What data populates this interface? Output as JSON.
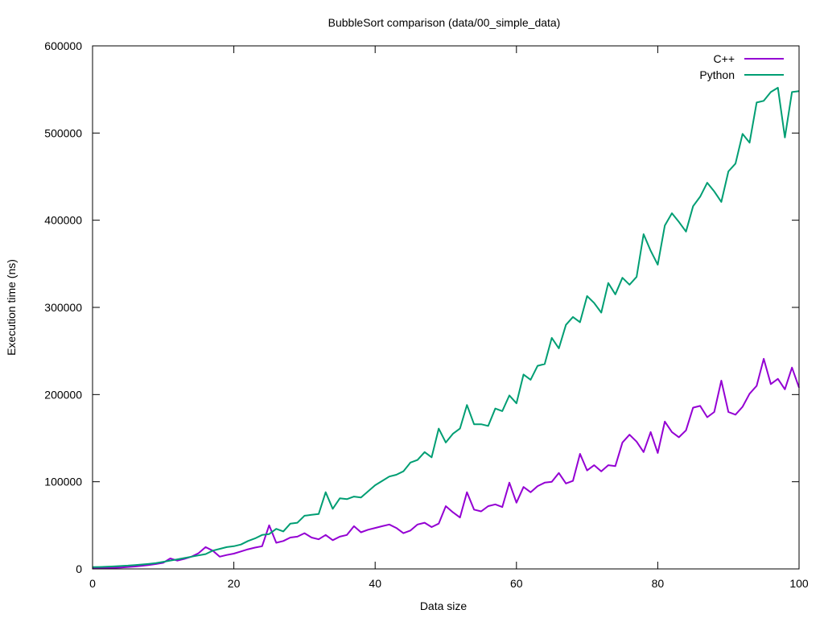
{
  "chart_data": {
    "type": "line",
    "title": "BubbleSort comparison (data/00_simple_data)",
    "xlabel": "Data size",
    "ylabel": "Execution time (ns)",
    "xlim": [
      0,
      100
    ],
    "ylim": [
      0,
      600000
    ],
    "x_ticks": [
      0,
      20,
      40,
      60,
      80,
      100
    ],
    "y_ticks": [
      0,
      100000,
      200000,
      300000,
      400000,
      500000,
      600000
    ],
    "grid": false,
    "legend_position": "top-right",
    "series": [
      {
        "name": "C++",
        "color": "#9400d3",
        "x": [
          0,
          1,
          2,
          3,
          4,
          5,
          6,
          7,
          8,
          9,
          10,
          11,
          12,
          13,
          14,
          15,
          16,
          17,
          18,
          19,
          20,
          21,
          22,
          23,
          24,
          25,
          26,
          27,
          28,
          29,
          30,
          31,
          32,
          33,
          34,
          35,
          36,
          37,
          38,
          39,
          40,
          41,
          42,
          43,
          44,
          45,
          46,
          47,
          48,
          49,
          50,
          51,
          52,
          53,
          54,
          55,
          56,
          57,
          58,
          59,
          60,
          61,
          62,
          63,
          64,
          65,
          66,
          67,
          68,
          69,
          70,
          71,
          72,
          73,
          74,
          75,
          76,
          77,
          78,
          79,
          80,
          81,
          82,
          83,
          84,
          85,
          86,
          87,
          88,
          89,
          90,
          91,
          92,
          93,
          94,
          95,
          96,
          97,
          98,
          99,
          100
        ],
        "values": [
          500,
          700,
          1000,
          1300,
          1700,
          2200,
          2800,
          3600,
          4500,
          5600,
          7000,
          12000,
          9500,
          11500,
          14000,
          18000,
          25000,
          21000,
          14000,
          16000,
          17500,
          20000,
          22500,
          24500,
          26000,
          50000,
          30000,
          32000,
          36000,
          37000,
          41000,
          36000,
          34000,
          39000,
          33000,
          37000,
          39000,
          49000,
          42000,
          45000,
          47000,
          49000,
          51000,
          47000,
          41000,
          44000,
          51000,
          53000,
          48000,
          52000,
          72000,
          65000,
          59000,
          88000,
          68000,
          66000,
          72000,
          74000,
          71000,
          99000,
          76000,
          94000,
          88000,
          95000,
          99000,
          100000,
          110000,
          98000,
          101000,
          132000,
          113000,
          119000,
          112000,
          119000,
          118000,
          145000,
          154000,
          146000,
          134000,
          157000,
          133000,
          169000,
          157000,
          151000,
          159000,
          185000,
          187000,
          174000,
          180000,
          216000,
          180000,
          177000,
          186000,
          201000,
          210000,
          241000,
          212000,
          218000,
          206000,
          231000,
          208000
        ]
      },
      {
        "name": "Python",
        "color": "#009e73",
        "x": [
          0,
          1,
          2,
          3,
          4,
          5,
          6,
          7,
          8,
          9,
          10,
          11,
          12,
          13,
          14,
          15,
          16,
          17,
          18,
          19,
          20,
          21,
          22,
          23,
          24,
          25,
          26,
          27,
          28,
          29,
          30,
          31,
          32,
          33,
          34,
          35,
          36,
          37,
          38,
          39,
          40,
          41,
          42,
          43,
          44,
          45,
          46,
          47,
          48,
          49,
          50,
          51,
          52,
          53,
          54,
          55,
          56,
          57,
          58,
          59,
          60,
          61,
          62,
          63,
          64,
          65,
          66,
          67,
          68,
          69,
          70,
          71,
          72,
          73,
          74,
          75,
          76,
          77,
          78,
          79,
          80,
          81,
          82,
          83,
          84,
          85,
          86,
          87,
          88,
          89,
          90,
          91,
          92,
          93,
          94,
          95,
          96,
          97,
          98,
          99,
          100
        ],
        "values": [
          2000,
          2200,
          2500,
          2900,
          3300,
          3800,
          4400,
          5100,
          5800,
          6700,
          8000,
          9500,
          11000,
          12500,
          14000,
          15500,
          17000,
          21000,
          23000,
          25000,
          26000,
          28000,
          32000,
          35000,
          39000,
          40000,
          46000,
          43000,
          52000,
          53000,
          61000,
          62000,
          63000,
          88000,
          69000,
          81000,
          80000,
          83000,
          82000,
          89000,
          96000,
          101000,
          106000,
          108000,
          112000,
          122000,
          125000,
          134000,
          128000,
          161000,
          145000,
          155000,
          161000,
          188000,
          166000,
          166000,
          164000,
          184000,
          181000,
          199000,
          190000,
          223000,
          217000,
          233000,
          235000,
          265000,
          253000,
          280000,
          289000,
          283000,
          313000,
          305000,
          294000,
          328000,
          315000,
          334000,
          326000,
          335000,
          384000,
          365000,
          349000,
          394000,
          408000,
          398000,
          387000,
          416000,
          427000,
          443000,
          433000,
          421000,
          456000,
          465000,
          499000,
          489000,
          535000,
          537000,
          547000,
          552000,
          495000,
          547000,
          548000
        ]
      }
    ]
  }
}
